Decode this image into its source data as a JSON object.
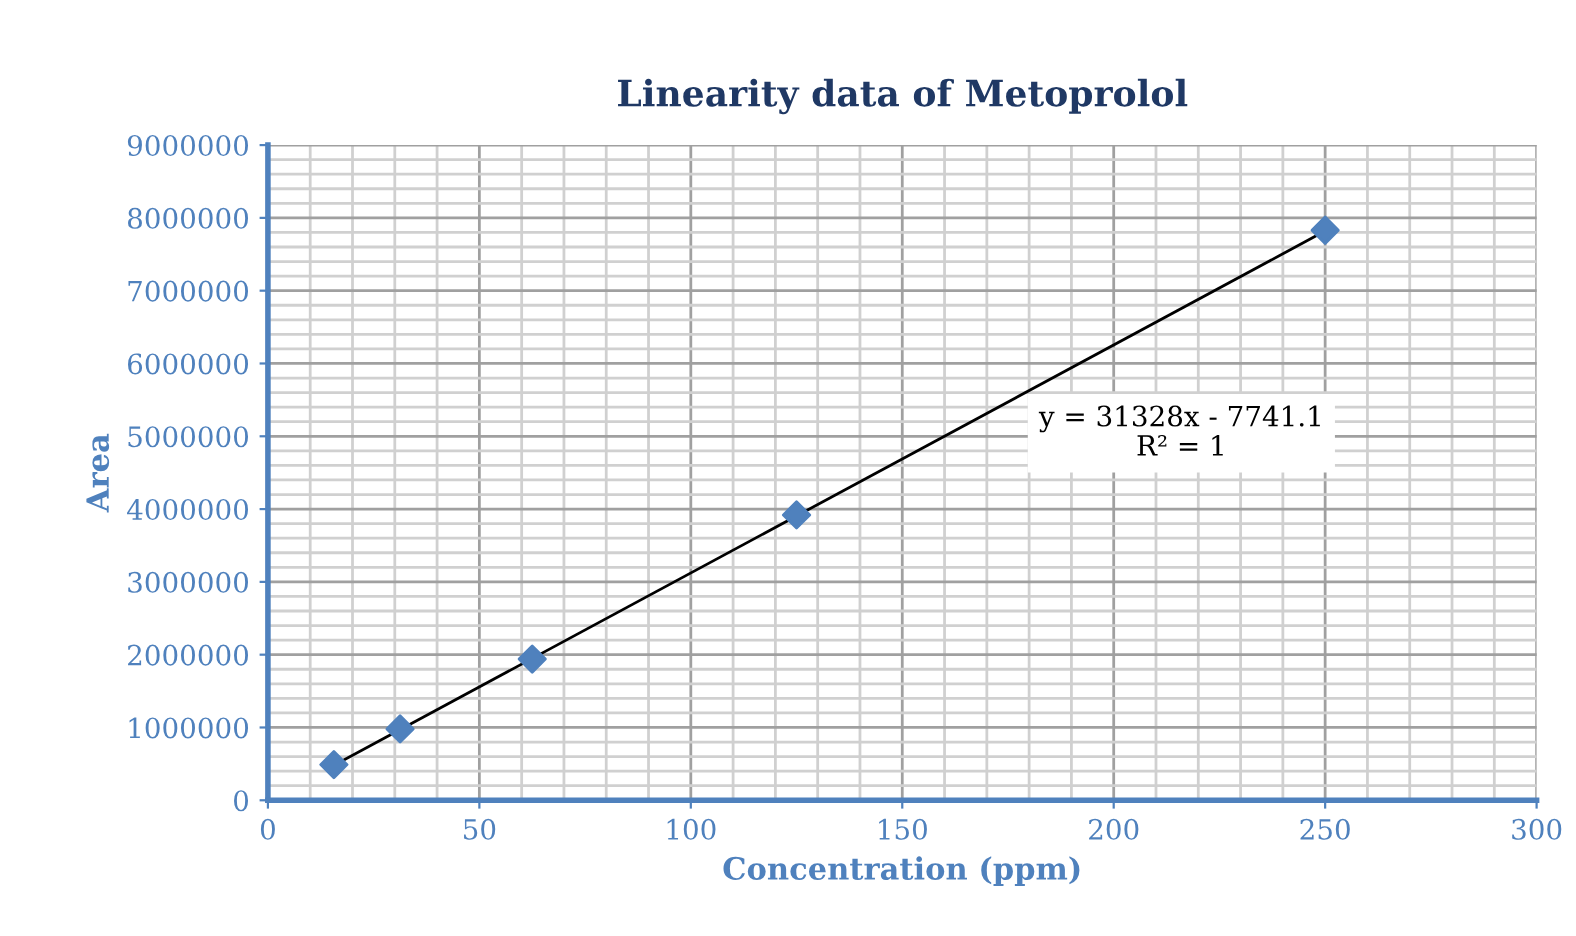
{
  "chart_data": {
    "type": "scatter",
    "title": "Linearity data of Metoprolol",
    "xlabel": "Concentration (ppm)",
    "ylabel": "Area",
    "series": [
      {
        "color": "#4f81bd",
        "marker": "diamond",
        "x": [
          15.6,
          31.25,
          62.5,
          125,
          250
        ],
        "values": [
          490000,
          980000,
          1940000,
          3920000,
          7830000
        ]
      },
      {
        "type": "line",
        "color": "#000000",
        "marker": "none",
        "line_style": "solid",
        "x": [
          15.6,
          250
        ],
        "values": [
          480000,
          7820000
        ]
      }
    ],
    "annotations": [
      "y = 31328x - 7741.1\nR² = 1"
    ],
    "xlim": [
      0,
      300
    ],
    "xticks": [
      0,
      50,
      100,
      150,
      200,
      250,
      300
    ],
    "ylim": [
      0,
      9000000
    ],
    "yticks": [
      0,
      1000000,
      2000000,
      3000000,
      4000000,
      5000000,
      6000000,
      7000000,
      8000000,
      9000000
    ],
    "grid": true,
    "legend": false
  }
}
